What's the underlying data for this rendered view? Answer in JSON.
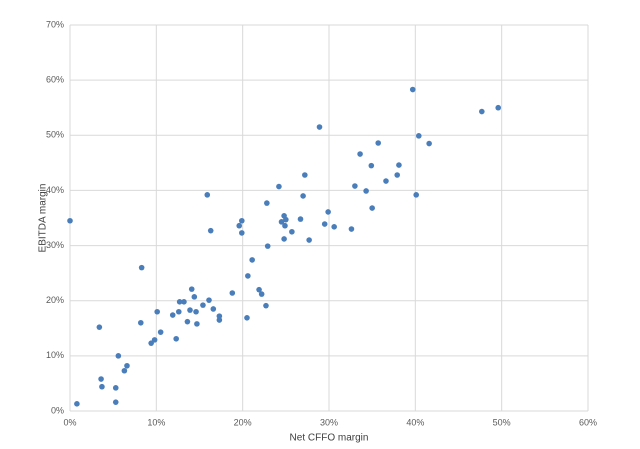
{
  "chart_data": {
    "type": "scatter",
    "x_label": "Net CFFO margin",
    "y_label": "EBITDA margin",
    "color": "#4a7ebb",
    "grid": true,
    "xlim": [
      0,
      60
    ],
    "ylim": [
      0,
      70
    ],
    "xticks": [
      {
        "value": 0,
        "label": "0%"
      },
      {
        "value": 10,
        "label": "10%"
      },
      {
        "value": 20,
        "label": "20%"
      },
      {
        "value": 30,
        "label": "30%"
      },
      {
        "value": 40,
        "label": "40%"
      },
      {
        "value": 50,
        "label": "50%"
      },
      {
        "value": 60,
        "label": "60%"
      }
    ],
    "yticks": [
      {
        "value": 0,
        "label": "0%"
      },
      {
        "value": 10,
        "label": "10%"
      },
      {
        "value": 20,
        "label": "20%"
      },
      {
        "value": 30,
        "label": "30%"
      },
      {
        "value": 40,
        "label": "40%"
      },
      {
        "value": 50,
        "label": "50%"
      },
      {
        "value": 60,
        "label": "60%"
      },
      {
        "value": 70,
        "label": "70%"
      }
    ],
    "x": [
      0,
      0.8,
      3.4,
      3.6,
      3.7,
      5.3,
      5.3,
      5.6,
      6.3,
      6.6,
      8.3,
      8.2,
      9.4,
      9.8,
      10.1,
      10.5,
      11.9,
      12.3,
      12.6,
      12.7,
      13.2,
      13.6,
      13.9,
      14.1,
      14.4,
      14.6,
      14.7,
      15.4,
      15.9,
      16.1,
      16.3,
      16.6,
      17.3,
      17.3,
      18.8,
      19.6,
      19.9,
      19.9,
      20.5,
      20.6,
      21.1,
      21.9,
      22.2,
      22.7,
      22.8,
      22.9,
      24.2,
      24.5,
      24.8,
      24.9,
      24.8,
      25.0,
      25.7,
      26.7,
      27.0,
      27.2,
      27.7,
      28.9,
      29.5,
      29.9,
      30.6,
      32.6,
      33.0,
      33.6,
      34.3,
      34.9,
      35.0,
      35.7,
      36.6,
      37.9,
      38.1,
      39.7,
      40.1,
      40.4,
      41.6,
      47.7,
      49.6
    ],
    "values": [
      34.5,
      1.3,
      15.2,
      5.8,
      4.4,
      1.6,
      4.2,
      10.0,
      7.3,
      8.2,
      26.0,
      16.0,
      12.3,
      12.9,
      18.0,
      14.3,
      17.4,
      13.1,
      18.0,
      19.8,
      19.8,
      16.2,
      18.3,
      22.1,
      20.7,
      18.0,
      15.8,
      19.2,
      39.2,
      20.1,
      32.7,
      18.5,
      16.5,
      17.2,
      21.4,
      33.6,
      34.5,
      32.3,
      16.9,
      24.5,
      27.4,
      22.0,
      21.2,
      19.1,
      37.7,
      29.9,
      40.7,
      34.3,
      35.4,
      33.6,
      31.2,
      34.7,
      32.5,
      34.8,
      39.0,
      42.8,
      31.0,
      51.5,
      33.9,
      36.1,
      33.4,
      33.0,
      40.8,
      46.6,
      39.9,
      44.5,
      36.8,
      48.6,
      41.7,
      42.8,
      44.6,
      58.3,
      39.2,
      49.9,
      48.5,
      54.3,
      55.0
    ]
  }
}
